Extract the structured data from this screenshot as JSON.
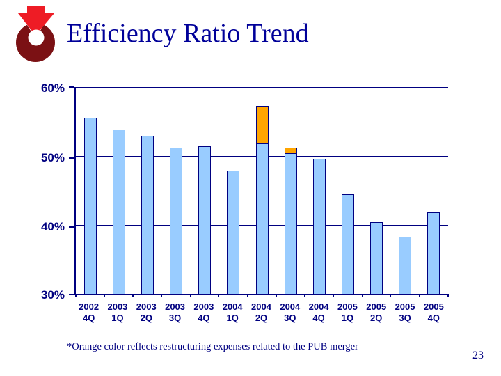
{
  "page": {
    "title": "Efficiency Ratio Trend",
    "footnote": "*Orange color reflects restructuring expenses related to the PUB merger",
    "page_number": "23"
  },
  "colors": {
    "navy": "#000080",
    "title": "#000099",
    "bar_fill": "#99CCFF",
    "bar_border": "#000080",
    "orange": "#FFA500",
    "logo_ring": "#7B1114",
    "logo_arrow": "#EE1C25"
  },
  "chart_data": {
    "type": "bar",
    "title": "Efficiency Ratio Trend",
    "xlabel": "",
    "ylabel": "",
    "ylim": [
      30,
      60
    ],
    "grid": true,
    "legend_position": "none",
    "yticks": [
      {
        "value": 60,
        "label": "60%"
      },
      {
        "value": 50,
        "label": "50%"
      },
      {
        "value": 40,
        "label": "40%"
      },
      {
        "value": 30,
        "label": "30%"
      }
    ],
    "categories": [
      {
        "year": "2002",
        "quarter": "4Q"
      },
      {
        "year": "2003",
        "quarter": "1Q"
      },
      {
        "year": "2003",
        "quarter": "2Q"
      },
      {
        "year": "2003",
        "quarter": "3Q"
      },
      {
        "year": "2003",
        "quarter": "4Q"
      },
      {
        "year": "2004",
        "quarter": "1Q"
      },
      {
        "year": "2004",
        "quarter": "2Q"
      },
      {
        "year": "2004",
        "quarter": "3Q"
      },
      {
        "year": "2004",
        "quarter": "4Q"
      },
      {
        "year": "2005",
        "quarter": "1Q"
      },
      {
        "year": "2005",
        "quarter": "2Q"
      },
      {
        "year": "2005",
        "quarter": "3Q"
      },
      {
        "year": "2005",
        "quarter": "4Q"
      }
    ],
    "series": [
      {
        "name": "Efficiency ratio",
        "color": "#99CCFF",
        "values": [
          55.6,
          53.8,
          52.9,
          51.2,
          51.4,
          47.9,
          51.8,
          50.4,
          49.6,
          44.4,
          40.4,
          38.3,
          41.8
        ]
      },
      {
        "name": "Restructuring expenses related to the PUB merger",
        "color": "#FFA500",
        "values": [
          0,
          0,
          0,
          0,
          0,
          0,
          5.5,
          0.8,
          0,
          0,
          0,
          0,
          0
        ]
      }
    ],
    "totals_with_restructuring": {
      "2004 2Q": 57.3,
      "2004 3Q": 51.2
    }
  }
}
